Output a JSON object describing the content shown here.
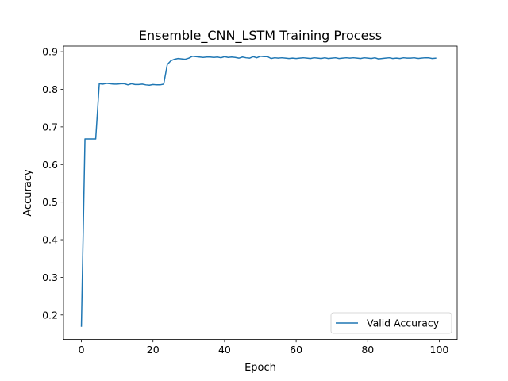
{
  "chart_data": {
    "type": "line",
    "title": "Ensemble_CNN_LSTM Training Process",
    "xlabel": "Epoch",
    "ylabel": "Accuracy",
    "xlim": [
      -5,
      105
    ],
    "ylim": [
      0.135,
      0.915
    ],
    "xticks": [
      0,
      20,
      40,
      60,
      80,
      100
    ],
    "yticks": [
      0.2,
      0.3,
      0.4,
      0.5,
      0.6,
      0.7,
      0.8,
      0.9
    ],
    "xtick_labels": [
      "0",
      "20",
      "40",
      "60",
      "80",
      "100"
    ],
    "ytick_labels": [
      "0.2",
      "0.3",
      "0.4",
      "0.5",
      "0.6",
      "0.7",
      "0.8",
      "0.9"
    ],
    "grid": false,
    "legend_position": "lower-right",
    "series": [
      {
        "name": "Valid Accuracy",
        "color": "#1f77b4",
        "x": [
          0,
          1,
          2,
          3,
          4,
          5,
          6,
          7,
          8,
          9,
          10,
          11,
          12,
          13,
          14,
          15,
          16,
          17,
          18,
          19,
          20,
          21,
          22,
          23,
          24,
          25,
          26,
          27,
          28,
          29,
          30,
          31,
          32,
          33,
          34,
          35,
          36,
          37,
          38,
          39,
          40,
          41,
          42,
          43,
          44,
          45,
          46,
          47,
          48,
          49,
          50,
          51,
          52,
          53,
          54,
          55,
          56,
          57,
          58,
          59,
          60,
          61,
          62,
          63,
          64,
          65,
          66,
          67,
          68,
          69,
          70,
          71,
          72,
          73,
          74,
          75,
          76,
          77,
          78,
          79,
          80,
          81,
          82,
          83,
          84,
          85,
          86,
          87,
          88,
          89,
          90,
          91,
          92,
          93,
          94,
          95,
          96,
          97,
          98,
          99
        ],
        "y": [
          0.17,
          0.668,
          0.668,
          0.668,
          0.668,
          0.815,
          0.814,
          0.816,
          0.815,
          0.814,
          0.814,
          0.815,
          0.815,
          0.812,
          0.815,
          0.813,
          0.813,
          0.814,
          0.812,
          0.811,
          0.813,
          0.812,
          0.812,
          0.814,
          0.866,
          0.876,
          0.88,
          0.882,
          0.881,
          0.88,
          0.883,
          0.888,
          0.887,
          0.886,
          0.885,
          0.886,
          0.886,
          0.885,
          0.886,
          0.884,
          0.887,
          0.885,
          0.886,
          0.885,
          0.883,
          0.886,
          0.884,
          0.883,
          0.887,
          0.884,
          0.888,
          0.887,
          0.887,
          0.882,
          0.884,
          0.883,
          0.884,
          0.883,
          0.882,
          0.883,
          0.882,
          0.883,
          0.884,
          0.883,
          0.882,
          0.884,
          0.883,
          0.882,
          0.884,
          0.882,
          0.883,
          0.884,
          0.882,
          0.883,
          0.884,
          0.883,
          0.884,
          0.883,
          0.882,
          0.884,
          0.883,
          0.882,
          0.884,
          0.881,
          0.882,
          0.883,
          0.884,
          0.882,
          0.883,
          0.882,
          0.884,
          0.883,
          0.883,
          0.884,
          0.882,
          0.883,
          0.884,
          0.884,
          0.882,
          0.883
        ]
      }
    ]
  }
}
